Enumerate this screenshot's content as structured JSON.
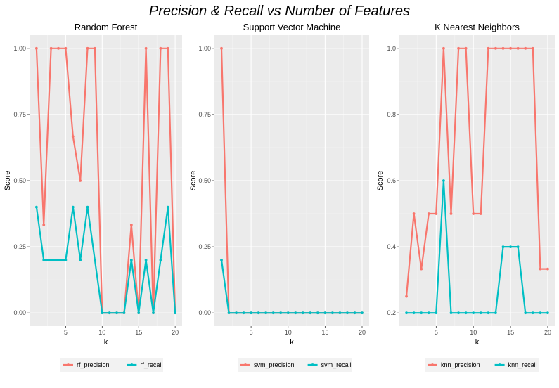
{
  "main_title": "Precision & Recall vs Number of Features",
  "chart_data": [
    {
      "type": "line",
      "title": "Random Forest",
      "xlabel": "k",
      "ylabel": "Score",
      "xlim": [
        0.05,
        20.95
      ],
      "ylim": [
        -0.05,
        1.05
      ],
      "x_ticks": [
        5,
        10,
        15,
        20
      ],
      "x_tick_labels": [
        "5",
        "10",
        "15",
        "20"
      ],
      "y_ticks": [
        0,
        0.25,
        0.5,
        0.75,
        1
      ],
      "y_tick_labels": [
        "0.00",
        "0.25",
        "0.50",
        "0.75",
        "1.00"
      ],
      "grid": true,
      "legend_position": "bottom",
      "x": [
        1,
        2,
        3,
        4,
        5,
        6,
        7,
        8,
        9,
        10,
        11,
        12,
        13,
        14,
        15,
        16,
        17,
        18,
        19,
        20
      ],
      "series": [
        {
          "name": "rf_precision",
          "color": "#F8766D",
          "values": [
            1,
            0.333,
            1,
            1,
            1,
            0.667,
            0.5,
            1,
            1,
            0,
            0,
            0,
            0,
            0.333,
            0,
            1,
            0,
            1,
            1,
            0
          ]
        },
        {
          "name": "rf_recall",
          "color": "#00BFC4",
          "values": [
            0.4,
            0.2,
            0.2,
            0.2,
            0.2,
            0.4,
            0.2,
            0.4,
            0.2,
            0,
            0,
            0,
            0,
            0.2,
            0,
            0.2,
            0,
            0.2,
            0.4,
            0
          ]
        }
      ]
    },
    {
      "type": "line",
      "title": "Support Vector Machine",
      "xlabel": "k",
      "ylabel": "Score",
      "xlim": [
        0.05,
        20.95
      ],
      "ylim": [
        -0.05,
        1.05
      ],
      "x_ticks": [
        5,
        10,
        15,
        20
      ],
      "x_tick_labels": [
        "5",
        "10",
        "15",
        "20"
      ],
      "y_ticks": [
        0,
        0.25,
        0.5,
        0.75,
        1
      ],
      "y_tick_labels": [
        "0.00",
        "0.25",
        "0.50",
        "0.75",
        "1.00"
      ],
      "grid": true,
      "legend_position": "bottom",
      "x": [
        1,
        2,
        3,
        4,
        5,
        6,
        7,
        8,
        9,
        10,
        11,
        12,
        13,
        14,
        15,
        16,
        17,
        18,
        19,
        20
      ],
      "series": [
        {
          "name": "svm_precision",
          "color": "#F8766D",
          "values": [
            1,
            0,
            0,
            0,
            0,
            0,
            0,
            0,
            0,
            0,
            0,
            0,
            0,
            0,
            0,
            0,
            0,
            0,
            0,
            0
          ]
        },
        {
          "name": "svm_recall",
          "color": "#00BFC4",
          "values": [
            0.2,
            0,
            0,
            0,
            0,
            0,
            0,
            0,
            0,
            0,
            0,
            0,
            0,
            0,
            0,
            0,
            0,
            0,
            0,
            0
          ]
        }
      ]
    },
    {
      "type": "line",
      "title": "K Nearest Neighbors",
      "xlabel": "k",
      "ylabel": "Score",
      "xlim": [
        0.05,
        20.95
      ],
      "ylim": [
        0.16,
        1.04
      ],
      "x_ticks": [
        5,
        10,
        15,
        20
      ],
      "x_tick_labels": [
        "5",
        "10",
        "15",
        "20"
      ],
      "y_ticks": [
        0.2,
        0.4,
        0.6,
        0.8,
        1
      ],
      "y_tick_labels": [
        "0.2",
        "0.4",
        "0.6",
        "0.8",
        "1.0"
      ],
      "grid": true,
      "legend_position": "bottom",
      "x": [
        1,
        2,
        3,
        4,
        5,
        6,
        7,
        8,
        9,
        10,
        11,
        12,
        13,
        14,
        15,
        16,
        17,
        18,
        19,
        20
      ],
      "series": [
        {
          "name": "knn_precision",
          "color": "#F8766D",
          "values": [
            0.25,
            0.5,
            0.333,
            0.5,
            0.5,
            1,
            0.5,
            1,
            1,
            0.5,
            0.5,
            1,
            1,
            1,
            1,
            1,
            1,
            1,
            0.333,
            0.333
          ]
        },
        {
          "name": "knn_recall",
          "color": "#00BFC4",
          "values": [
            0.2,
            0.2,
            0.2,
            0.2,
            0.2,
            0.6,
            0.2,
            0.2,
            0.2,
            0.2,
            0.2,
            0.2,
            0.2,
            0.4,
            0.4,
            0.4,
            0.2,
            0.2,
            0.2,
            0.2
          ]
        }
      ]
    }
  ]
}
